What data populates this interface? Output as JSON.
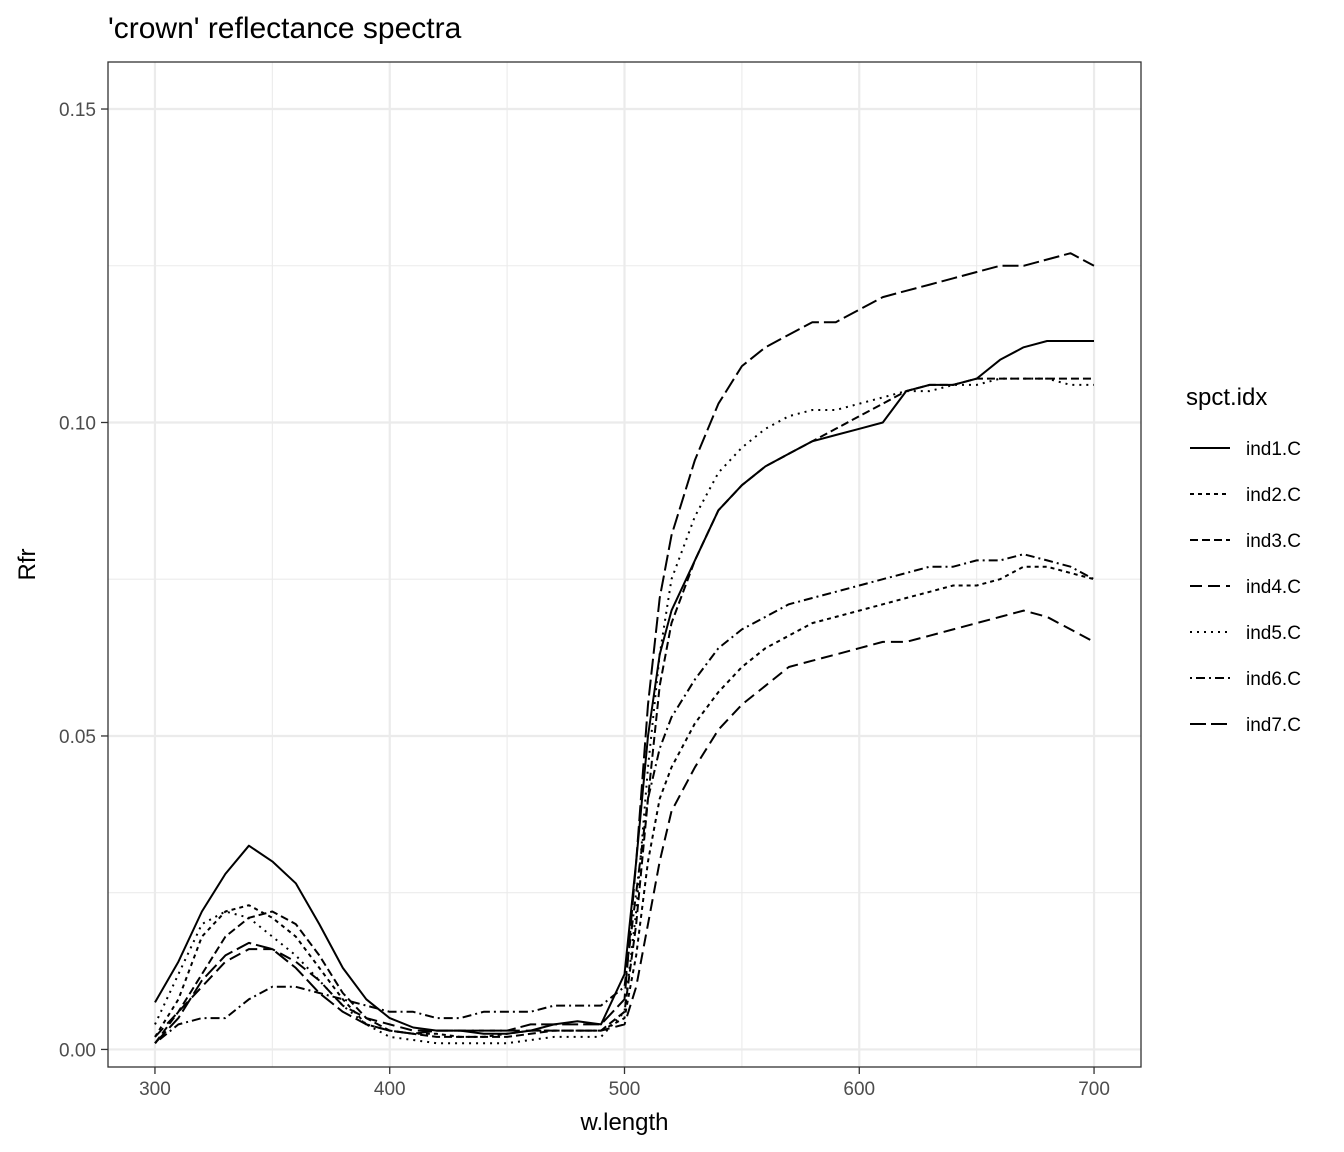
{
  "chart_data": {
    "type": "line",
    "title": "'crown' reflectance spectra",
    "xlabel": "w.length",
    "ylabel": "Rfr",
    "xlim": [
      280,
      720
    ],
    "ylim": [
      -0.0028,
      0.1575
    ],
    "x_ticks": [
      300,
      400,
      500,
      600,
      700
    ],
    "x_tick_labels": [
      "300",
      "400",
      "500",
      "600",
      "700"
    ],
    "y_ticks": [
      0.0,
      0.05,
      0.1,
      0.15
    ],
    "y_tick_labels": [
      "0.00",
      "0.05",
      "0.10",
      "0.15"
    ],
    "grid": true,
    "legend_title": "spct.idx",
    "legend_position": "right",
    "x": [
      300,
      310,
      320,
      330,
      340,
      350,
      360,
      370,
      380,
      390,
      400,
      410,
      420,
      430,
      440,
      450,
      460,
      470,
      480,
      490,
      500,
      505,
      510,
      515,
      520,
      530,
      540,
      550,
      560,
      570,
      580,
      590,
      600,
      610,
      620,
      630,
      640,
      650,
      660,
      670,
      680,
      690,
      700
    ],
    "series": [
      {
        "name": "ind1.C",
        "dash": "solid",
        "values": [
          0.0075,
          0.014,
          0.022,
          0.028,
          0.0325,
          0.03,
          0.0265,
          0.02,
          0.013,
          0.008,
          0.005,
          0.0035,
          0.003,
          0.003,
          0.0025,
          0.0025,
          0.003,
          0.004,
          0.0045,
          0.004,
          0.012,
          0.03,
          0.05,
          0.063,
          0.07,
          0.078,
          0.086,
          0.09,
          0.093,
          0.095,
          0.097,
          0.098,
          0.099,
          0.1,
          0.105,
          0.106,
          0.106,
          0.107,
          0.11,
          0.112,
          0.113,
          0.113,
          0.113
        ]
      },
      {
        "name": "ind2.C",
        "dash": "short",
        "values": [
          0.002,
          0.008,
          0.018,
          0.022,
          0.023,
          0.021,
          0.018,
          0.013,
          0.008,
          0.004,
          0.003,
          0.0025,
          0.0025,
          0.002,
          0.002,
          0.0025,
          0.003,
          0.003,
          0.003,
          0.003,
          0.005,
          0.015,
          0.03,
          0.04,
          0.045,
          0.052,
          0.057,
          0.061,
          0.064,
          0.066,
          0.068,
          0.069,
          0.07,
          0.071,
          0.072,
          0.073,
          0.074,
          0.074,
          0.075,
          0.077,
          0.077,
          0.076,
          0.075
        ]
      },
      {
        "name": "ind3.C",
        "dash": "medium",
        "values": [
          0.001,
          0.006,
          0.012,
          0.018,
          0.021,
          0.022,
          0.02,
          0.015,
          0.009,
          0.005,
          0.003,
          0.0025,
          0.002,
          0.002,
          0.002,
          0.002,
          0.0025,
          0.003,
          0.003,
          0.003,
          0.006,
          0.02,
          0.04,
          0.058,
          0.068,
          0.078,
          0.086,
          0.09,
          0.093,
          0.095,
          0.097,
          0.099,
          0.101,
          0.103,
          0.105,
          0.106,
          0.106,
          0.107,
          0.107,
          0.107,
          0.107,
          0.107,
          0.107
        ]
      },
      {
        "name": "ind4.C",
        "dash": "long",
        "values": [
          0.002,
          0.006,
          0.01,
          0.014,
          0.016,
          0.016,
          0.014,
          0.011,
          0.007,
          0.005,
          0.004,
          0.003,
          0.003,
          0.003,
          0.003,
          0.003,
          0.003,
          0.003,
          0.003,
          0.003,
          0.004,
          0.01,
          0.02,
          0.03,
          0.038,
          0.045,
          0.051,
          0.055,
          0.058,
          0.061,
          0.062,
          0.063,
          0.064,
          0.065,
          0.065,
          0.066,
          0.067,
          0.068,
          0.069,
          0.07,
          0.069,
          0.067,
          0.065
        ]
      },
      {
        "name": "ind5.C",
        "dash": "dotted",
        "values": [
          0.004,
          0.012,
          0.02,
          0.022,
          0.021,
          0.018,
          0.015,
          0.011,
          0.007,
          0.004,
          0.002,
          0.0015,
          0.001,
          0.001,
          0.001,
          0.001,
          0.0015,
          0.002,
          0.002,
          0.002,
          0.006,
          0.022,
          0.045,
          0.063,
          0.075,
          0.085,
          0.092,
          0.096,
          0.099,
          0.101,
          0.102,
          0.102,
          0.103,
          0.104,
          0.105,
          0.105,
          0.106,
          0.106,
          0.107,
          0.107,
          0.107,
          0.106,
          0.106
        ]
      },
      {
        "name": "ind6.C",
        "dash": "dotdash",
        "values": [
          0.001,
          0.004,
          0.005,
          0.005,
          0.008,
          0.01,
          0.01,
          0.009,
          0.008,
          0.007,
          0.006,
          0.006,
          0.005,
          0.005,
          0.006,
          0.006,
          0.006,
          0.007,
          0.007,
          0.007,
          0.01,
          0.025,
          0.04,
          0.048,
          0.053,
          0.059,
          0.064,
          0.067,
          0.069,
          0.071,
          0.072,
          0.073,
          0.074,
          0.075,
          0.076,
          0.077,
          0.077,
          0.078,
          0.078,
          0.079,
          0.078,
          0.077,
          0.075
        ]
      },
      {
        "name": "ind7.C",
        "dash": "longdash",
        "values": [
          0.001,
          0.005,
          0.011,
          0.015,
          0.017,
          0.016,
          0.013,
          0.009,
          0.006,
          0.004,
          0.003,
          0.0025,
          0.003,
          0.003,
          0.003,
          0.003,
          0.004,
          0.004,
          0.004,
          0.004,
          0.008,
          0.03,
          0.055,
          0.072,
          0.082,
          0.094,
          0.103,
          0.109,
          0.112,
          0.114,
          0.116,
          0.116,
          0.118,
          0.12,
          0.121,
          0.122,
          0.123,
          0.124,
          0.125,
          0.125,
          0.126,
          0.127,
          0.125
        ]
      }
    ]
  }
}
